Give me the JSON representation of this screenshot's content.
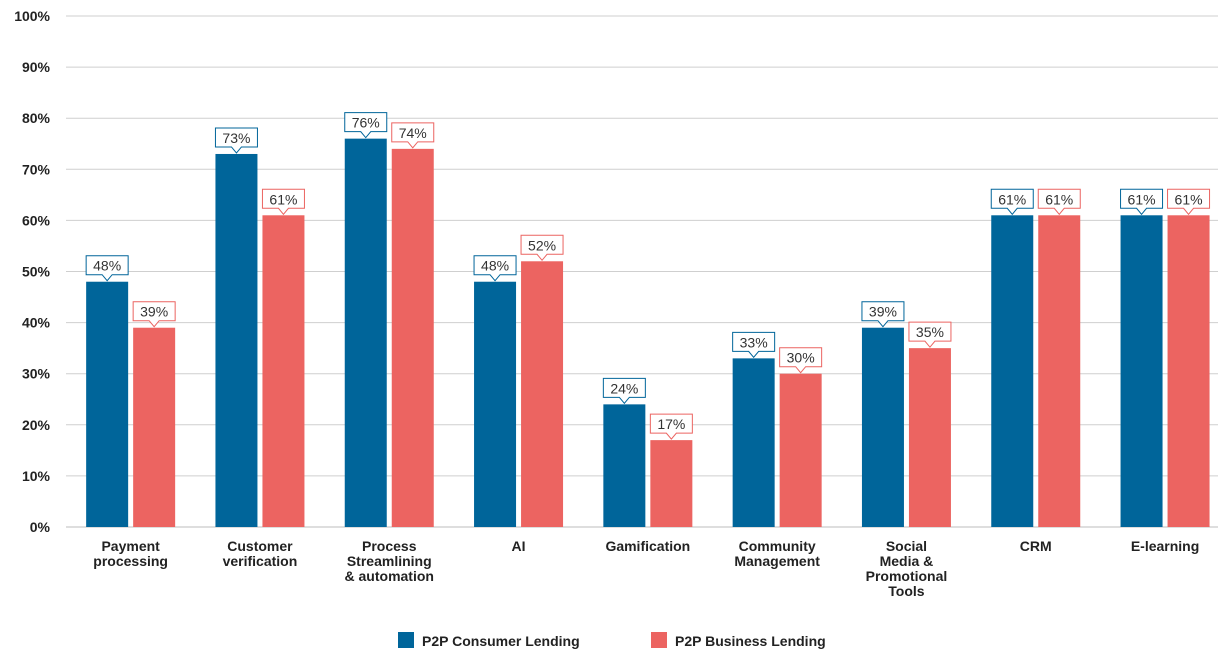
{
  "chart_data": {
    "type": "bar",
    "categories": [
      [
        "Payment",
        "processing"
      ],
      [
        "Customer",
        "verification"
      ],
      [
        "Process",
        "Streamlining",
        "& automation"
      ],
      [
        "AI"
      ],
      [
        "Gamification"
      ],
      [
        "Community",
        "Management"
      ],
      [
        "Social",
        "Media &",
        "Promotional",
        "Tools"
      ],
      [
        "CRM"
      ],
      [
        "E-learning"
      ]
    ],
    "series": [
      {
        "name": "P2P Consumer Lending",
        "color": "#00659a",
        "values": [
          48,
          73,
          76,
          48,
          24,
          33,
          39,
          61,
          61
        ],
        "labels": [
          "48%",
          "73%",
          "76%",
          "48%",
          "24%",
          "33%",
          "39%",
          "61%",
          "61%"
        ]
      },
      {
        "name": "P2P Business Lending",
        "color": "#ec6461",
        "values": [
          39,
          61,
          74,
          52,
          17,
          30,
          35,
          61,
          61
        ],
        "labels": [
          "39%",
          "61%",
          "74%",
          "52%",
          "17%",
          "30%",
          "35%",
          "61%",
          "61%"
        ]
      }
    ],
    "ylim": [
      0,
      100
    ],
    "yticks": [
      0,
      10,
      20,
      30,
      40,
      50,
      60,
      70,
      80,
      90,
      100
    ],
    "ytick_labels": [
      "0%",
      "10%",
      "20%",
      "30%",
      "40%",
      "50%",
      "60%",
      "70%",
      "80%",
      "90%",
      "100%"
    ],
    "grid": true,
    "legend": "bottom-center"
  }
}
